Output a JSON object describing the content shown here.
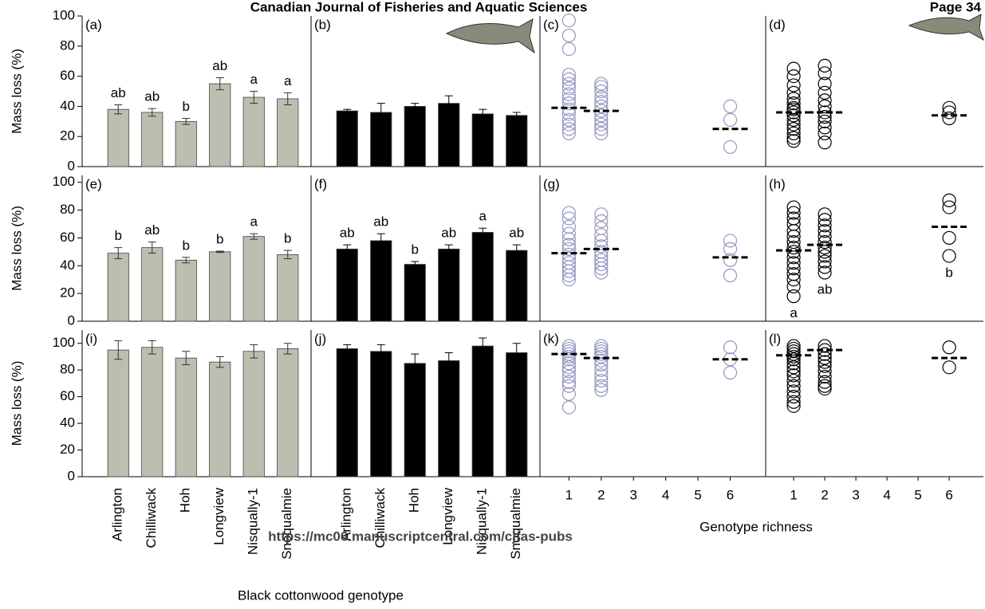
{
  "header": {
    "journal": "Canadian Journal of Fisheries and Aquatic Sciences",
    "page": "Page 34",
    "url": "https://mc06.manuscriptcentral.com/cjfas-pubs"
  },
  "x_label_genotype": "Black cottonwood genotype",
  "x_label_richness": "Genotype richness",
  "chart_data": [
    {
      "type": "bar",
      "panel_label": "(a)",
      "ylabel": "Mass loss (%)",
      "color": "#bdbdb0",
      "values": [
        38,
        36,
        30,
        55,
        46,
        45
      ],
      "errors": [
        3,
        2.5,
        2,
        4,
        4,
        4
      ],
      "letters": [
        "ab",
        "ab",
        "b",
        "ab",
        "a",
        "a"
      ],
      "ylim": [
        0,
        100
      ],
      "yticks": [
        0,
        20,
        40,
        60,
        80,
        100
      ]
    },
    {
      "type": "bar",
      "panel_label": "(b)",
      "color": "#000000",
      "values": [
        37,
        36,
        40,
        42,
        35,
        34
      ],
      "errors": [
        1,
        6,
        2,
        5,
        3,
        2
      ],
      "ylim": [
        0,
        100
      ]
    },
    {
      "type": "scatter",
      "panel_label": "(c)",
      "color": "#9496c0",
      "xlim": [
        0.1,
        7.1
      ],
      "ylim": [
        0,
        100
      ],
      "groups": [
        {
          "x": 1,
          "mean": 39,
          "values": [
            97,
            87,
            78,
            61,
            58,
            55,
            52,
            48,
            45,
            42,
            38,
            35,
            31,
            28,
            25,
            22
          ]
        },
        {
          "x": 2,
          "mean": 37,
          "values": [
            55,
            53,
            50,
            46,
            43,
            40,
            37,
            34,
            31,
            28,
            25,
            22
          ]
        },
        {
          "x": 6,
          "mean": 25,
          "values": [
            40,
            31,
            13
          ]
        }
      ]
    },
    {
      "type": "scatter",
      "panel_label": "(d)",
      "color": "#000000",
      "xlim": [
        0.1,
        7.1
      ],
      "ylim": [
        0,
        100
      ],
      "groups": [
        {
          "x": 1,
          "mean": 36,
          "values": [
            65,
            60,
            54,
            49,
            45,
            42,
            39,
            36,
            34,
            31,
            28,
            25,
            22,
            19,
            17,
            38
          ]
        },
        {
          "x": 2,
          "mean": 36,
          "values": [
            67,
            62,
            55,
            49,
            44,
            40,
            36,
            33,
            30,
            26,
            22,
            16
          ]
        },
        {
          "x": 6,
          "mean": 34,
          "values": [
            39,
            36,
            32
          ]
        }
      ]
    },
    {
      "type": "bar",
      "panel_label": "(e)",
      "ylabel": "Mass loss (%)",
      "color": "#bdbdb0",
      "values": [
        49,
        53,
        44,
        50,
        61,
        48
      ],
      "errors": [
        4,
        4,
        2,
        0.5,
        2,
        3
      ],
      "letters": [
        "b",
        "ab",
        "b",
        "b",
        "a",
        "b"
      ],
      "ylim": [
        0,
        105
      ],
      "yticks": [
        0,
        20,
        40,
        60,
        80,
        100
      ]
    },
    {
      "type": "bar",
      "panel_label": "(f)",
      "color": "#000000",
      "values": [
        52,
        58,
        41,
        52,
        64,
        51
      ],
      "errors": [
        3,
        5,
        2,
        3,
        3,
        4
      ],
      "letters": [
        "ab",
        "ab",
        "b",
        "ab",
        "a",
        "ab"
      ],
      "ylim": [
        0,
        105
      ]
    },
    {
      "type": "scatter",
      "panel_label": "(g)",
      "color": "#9496c0",
      "xlim": [
        0.1,
        7.1
      ],
      "ylim": [
        0,
        105
      ],
      "groups": [
        {
          "x": 1,
          "mean": 49,
          "values": [
            78,
            74,
            68,
            63,
            59,
            55,
            52,
            48,
            45,
            42,
            39,
            36,
            33,
            30
          ]
        },
        {
          "x": 2,
          "mean": 52,
          "values": [
            77,
            72,
            67,
            62,
            58,
            54,
            50,
            47,
            44,
            41,
            38,
            35
          ]
        },
        {
          "x": 6,
          "mean": 46,
          "values": [
            58,
            52,
            44,
            33
          ]
        }
      ]
    },
    {
      "type": "scatter",
      "panel_label": "(h)",
      "color": "#000000",
      "xlim": [
        0.1,
        7.1
      ],
      "ylim": [
        0,
        105
      ],
      "groups": [
        {
          "x": 1,
          "mean": 51,
          "letter": "a",
          "values": [
            82,
            78,
            74,
            70,
            65,
            61,
            57,
            53,
            50,
            46,
            42,
            38,
            34,
            30,
            25,
            18
          ]
        },
        {
          "x": 2,
          "mean": 55,
          "letter": "ab",
          "values": [
            77,
            73,
            69,
            65,
            61,
            57,
            53,
            50,
            47,
            43,
            39,
            35
          ]
        },
        {
          "x": 6,
          "mean": 68,
          "letter": "b",
          "values": [
            87,
            82,
            60,
            47
          ]
        }
      ]
    },
    {
      "type": "bar",
      "panel_label": "(i)",
      "ylabel": "Mass loss (%)",
      "color": "#bdbdb0",
      "categories": [
        "Arlington",
        "Chilliwack",
        "Hoh",
        "Longview",
        "Nisqually-1",
        "Snoqualmie"
      ],
      "values": [
        95,
        97,
        89,
        86,
        94,
        96
      ],
      "errors": [
        7,
        5,
        5,
        4,
        5,
        4
      ],
      "ylim": [
        0,
        110
      ],
      "yticks": [
        0,
        20,
        40,
        60,
        80,
        100
      ]
    },
    {
      "type": "bar",
      "panel_label": "(j)",
      "color": "#000000",
      "categories": [
        "Arlington",
        "Chilliwack",
        "Hoh",
        "Longview",
        "Nisqually-1",
        "Snoqualmie"
      ],
      "values": [
        96,
        94,
        85,
        87,
        98,
        93
      ],
      "errors": [
        3,
        5,
        7,
        6,
        6,
        7
      ],
      "ylim": [
        0,
        110
      ]
    },
    {
      "type": "scatter",
      "panel_label": "(k)",
      "color": "#9496c0",
      "xlim": [
        0.1,
        7.1
      ],
      "ylim": [
        0,
        110
      ],
      "xticks": [
        1,
        2,
        3,
        4,
        5,
        6
      ],
      "groups": [
        {
          "x": 1,
          "mean": 92,
          "values": [
            98,
            96,
            94,
            92,
            90,
            88,
            85,
            82,
            79,
            75,
            71,
            68,
            62,
            52
          ]
        },
        {
          "x": 2,
          "mean": 89,
          "values": [
            98,
            96,
            94,
            92,
            90,
            87,
            84,
            80,
            76,
            72,
            68,
            65
          ]
        },
        {
          "x": 6,
          "mean": 88,
          "values": [
            97,
            88,
            78
          ]
        }
      ]
    },
    {
      "type": "scatter",
      "panel_label": "(l)",
      "color": "#000000",
      "xlim": [
        0.1,
        7.1
      ],
      "ylim": [
        0,
        110
      ],
      "xticks": [
        1,
        2,
        3,
        4,
        5,
        6
      ],
      "groups": [
        {
          "x": 1,
          "mean": 91,
          "values": [
            98,
            96,
            94,
            92,
            90,
            88,
            85,
            82,
            79,
            76,
            72,
            68,
            64,
            60,
            56,
            53
          ]
        },
        {
          "x": 2,
          "mean": 95,
          "values": [
            98,
            95,
            92,
            89,
            86,
            83,
            79,
            75,
            71,
            68,
            66
          ]
        },
        {
          "x": 6,
          "mean": 89,
          "values": [
            97,
            82
          ]
        }
      ]
    }
  ]
}
